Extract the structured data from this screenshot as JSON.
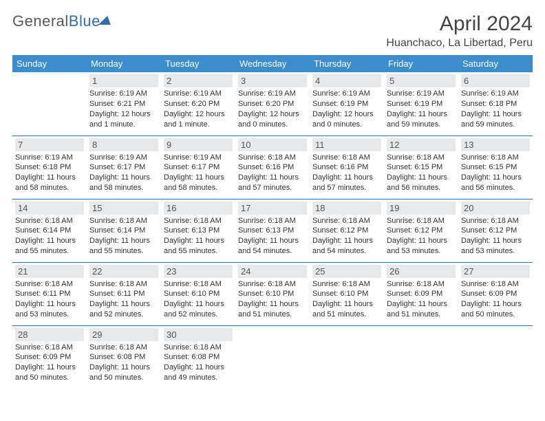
{
  "logo": {
    "word1": "General",
    "word2": "Blue"
  },
  "title": "April 2024",
  "location": "Huanchaco, La Libertad, Peru",
  "colors": {
    "header_bg": "#3c8dcc",
    "border": "#2f6fab",
    "daynum_bg": "#e7e9eb"
  },
  "weekdays": [
    "Sunday",
    "Monday",
    "Tuesday",
    "Wednesday",
    "Thursday",
    "Friday",
    "Saturday"
  ],
  "weeks": [
    [
      {
        "n": "",
        "sr": "",
        "ss": "",
        "dl": ""
      },
      {
        "n": "1",
        "sr": "Sunrise: 6:19 AM",
        "ss": "Sunset: 6:21 PM",
        "dl": "Daylight: 12 hours and 1 minute."
      },
      {
        "n": "2",
        "sr": "Sunrise: 6:19 AM",
        "ss": "Sunset: 6:20 PM",
        "dl": "Daylight: 12 hours and 1 minute."
      },
      {
        "n": "3",
        "sr": "Sunrise: 6:19 AM",
        "ss": "Sunset: 6:20 PM",
        "dl": "Daylight: 12 hours and 0 minutes."
      },
      {
        "n": "4",
        "sr": "Sunrise: 6:19 AM",
        "ss": "Sunset: 6:19 PM",
        "dl": "Daylight: 12 hours and 0 minutes."
      },
      {
        "n": "5",
        "sr": "Sunrise: 6:19 AM",
        "ss": "Sunset: 6:19 PM",
        "dl": "Daylight: 11 hours and 59 minutes."
      },
      {
        "n": "6",
        "sr": "Sunrise: 6:19 AM",
        "ss": "Sunset: 6:18 PM",
        "dl": "Daylight: 11 hours and 59 minutes."
      }
    ],
    [
      {
        "n": "7",
        "sr": "Sunrise: 6:19 AM",
        "ss": "Sunset: 6:18 PM",
        "dl": "Daylight: 11 hours and 58 minutes."
      },
      {
        "n": "8",
        "sr": "Sunrise: 6:19 AM",
        "ss": "Sunset: 6:17 PM",
        "dl": "Daylight: 11 hours and 58 minutes."
      },
      {
        "n": "9",
        "sr": "Sunrise: 6:19 AM",
        "ss": "Sunset: 6:17 PM",
        "dl": "Daylight: 11 hours and 58 minutes."
      },
      {
        "n": "10",
        "sr": "Sunrise: 6:18 AM",
        "ss": "Sunset: 6:16 PM",
        "dl": "Daylight: 11 hours and 57 minutes."
      },
      {
        "n": "11",
        "sr": "Sunrise: 6:18 AM",
        "ss": "Sunset: 6:16 PM",
        "dl": "Daylight: 11 hours and 57 minutes."
      },
      {
        "n": "12",
        "sr": "Sunrise: 6:18 AM",
        "ss": "Sunset: 6:15 PM",
        "dl": "Daylight: 11 hours and 56 minutes."
      },
      {
        "n": "13",
        "sr": "Sunrise: 6:18 AM",
        "ss": "Sunset: 6:15 PM",
        "dl": "Daylight: 11 hours and 56 minutes."
      }
    ],
    [
      {
        "n": "14",
        "sr": "Sunrise: 6:18 AM",
        "ss": "Sunset: 6:14 PM",
        "dl": "Daylight: 11 hours and 55 minutes."
      },
      {
        "n": "15",
        "sr": "Sunrise: 6:18 AM",
        "ss": "Sunset: 6:14 PM",
        "dl": "Daylight: 11 hours and 55 minutes."
      },
      {
        "n": "16",
        "sr": "Sunrise: 6:18 AM",
        "ss": "Sunset: 6:13 PM",
        "dl": "Daylight: 11 hours and 55 minutes."
      },
      {
        "n": "17",
        "sr": "Sunrise: 6:18 AM",
        "ss": "Sunset: 6:13 PM",
        "dl": "Daylight: 11 hours and 54 minutes."
      },
      {
        "n": "18",
        "sr": "Sunrise: 6:18 AM",
        "ss": "Sunset: 6:12 PM",
        "dl": "Daylight: 11 hours and 54 minutes."
      },
      {
        "n": "19",
        "sr": "Sunrise: 6:18 AM",
        "ss": "Sunset: 6:12 PM",
        "dl": "Daylight: 11 hours and 53 minutes."
      },
      {
        "n": "20",
        "sr": "Sunrise: 6:18 AM",
        "ss": "Sunset: 6:12 PM",
        "dl": "Daylight: 11 hours and 53 minutes."
      }
    ],
    [
      {
        "n": "21",
        "sr": "Sunrise: 6:18 AM",
        "ss": "Sunset: 6:11 PM",
        "dl": "Daylight: 11 hours and 53 minutes."
      },
      {
        "n": "22",
        "sr": "Sunrise: 6:18 AM",
        "ss": "Sunset: 6:11 PM",
        "dl": "Daylight: 11 hours and 52 minutes."
      },
      {
        "n": "23",
        "sr": "Sunrise: 6:18 AM",
        "ss": "Sunset: 6:10 PM",
        "dl": "Daylight: 11 hours and 52 minutes."
      },
      {
        "n": "24",
        "sr": "Sunrise: 6:18 AM",
        "ss": "Sunset: 6:10 PM",
        "dl": "Daylight: 11 hours and 51 minutes."
      },
      {
        "n": "25",
        "sr": "Sunrise: 6:18 AM",
        "ss": "Sunset: 6:10 PM",
        "dl": "Daylight: 11 hours and 51 minutes."
      },
      {
        "n": "26",
        "sr": "Sunrise: 6:18 AM",
        "ss": "Sunset: 6:09 PM",
        "dl": "Daylight: 11 hours and 51 minutes."
      },
      {
        "n": "27",
        "sr": "Sunrise: 6:18 AM",
        "ss": "Sunset: 6:09 PM",
        "dl": "Daylight: 11 hours and 50 minutes."
      }
    ],
    [
      {
        "n": "28",
        "sr": "Sunrise: 6:18 AM",
        "ss": "Sunset: 6:09 PM",
        "dl": "Daylight: 11 hours and 50 minutes."
      },
      {
        "n": "29",
        "sr": "Sunrise: 6:18 AM",
        "ss": "Sunset: 6:08 PM",
        "dl": "Daylight: 11 hours and 50 minutes."
      },
      {
        "n": "30",
        "sr": "Sunrise: 6:18 AM",
        "ss": "Sunset: 6:08 PM",
        "dl": "Daylight: 11 hours and 49 minutes."
      },
      {
        "n": "",
        "sr": "",
        "ss": "",
        "dl": ""
      },
      {
        "n": "",
        "sr": "",
        "ss": "",
        "dl": ""
      },
      {
        "n": "",
        "sr": "",
        "ss": "",
        "dl": ""
      },
      {
        "n": "",
        "sr": "",
        "ss": "",
        "dl": ""
      }
    ]
  ]
}
